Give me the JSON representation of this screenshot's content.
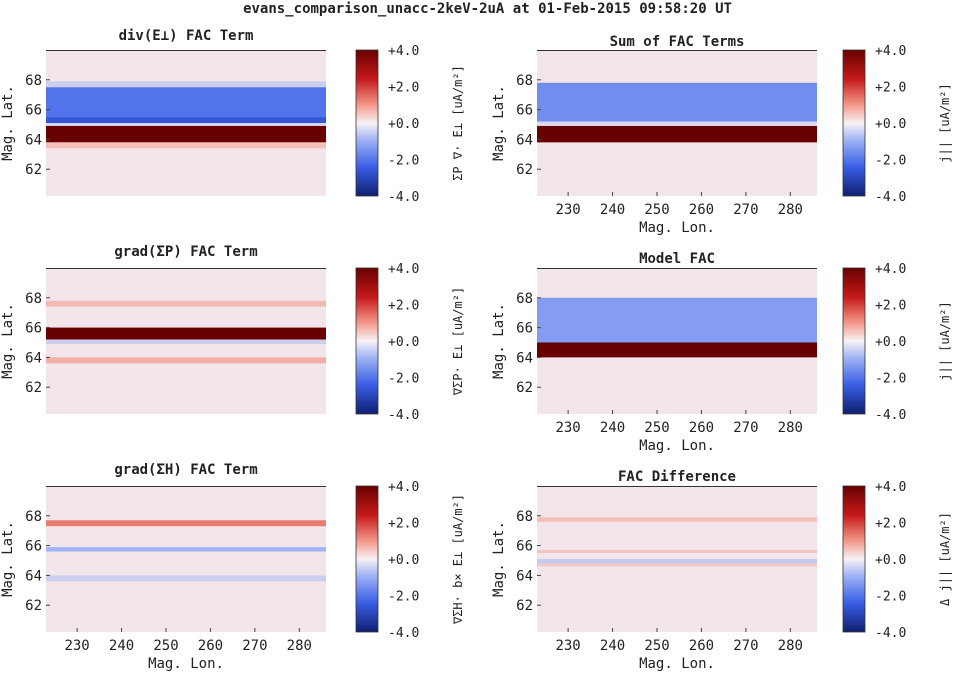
{
  "suptitle": "evans_comparison_unacc-2keV-2uA at 01-Feb-2015 09:58:20 UT",
  "colors": {
    "pos_strong": "#7a0000",
    "pos": "#d62f2f",
    "pos_light": "#f4b7b0",
    "neutral": "#f2e6ea",
    "neg_light": "#aeb9f2",
    "neg": "#3f63e8",
    "neg_strong": "#1b2f8f"
  },
  "colorbar": {
    "ticks": [
      "+4.0",
      "+2.0",
      "+0.0",
      "-2.0",
      "-4.0"
    ],
    "range": [
      -4.0,
      4.0
    ],
    "cmap": "blue-white-red"
  },
  "chart_data": [
    {
      "id": "div-e",
      "type": "heatmap",
      "title": "div(E⊥) FAC Term",
      "xlabel": "",
      "ylabel": "Mag. Lat.",
      "xticks": [],
      "yticks": [
        "62",
        "64",
        "66",
        "68"
      ],
      "xlim": [
        223,
        286
      ],
      "ylim": [
        60.2,
        70
      ],
      "colorbar_label": "ΣP ∇· E⊥ [uA/m²]",
      "bands": [
        {
          "lat": [
            67.5,
            67.9
          ],
          "value": -0.8
        },
        {
          "lat": [
            65.5,
            67.5
          ],
          "value": -2.8
        },
        {
          "lat": [
            65.1,
            65.5
          ],
          "value": -3.3
        },
        {
          "lat": [
            64.9,
            65.1
          ],
          "value": -0.6
        },
        {
          "lat": [
            63.8,
            64.9
          ],
          "value": 4.0
        },
        {
          "lat": [
            63.4,
            63.8
          ],
          "value": 0.9
        }
      ]
    },
    {
      "id": "sum",
      "type": "heatmap",
      "title": "Sum of FAC Terms",
      "xlabel": "Mag. Lon.",
      "ylabel": "Mag. Lat.",
      "xticks": [
        "230",
        "240",
        "250",
        "260",
        "270",
        "280"
      ],
      "yticks": [
        "62",
        "64",
        "66",
        "68"
      ],
      "xlim": [
        223,
        286
      ],
      "ylim": [
        60.2,
        70
      ],
      "colorbar_label": "j|| [uA/m²]",
      "bands": [
        {
          "lat": [
            65.2,
            67.8
          ],
          "value": -2.3
        },
        {
          "lat": [
            64.9,
            65.2
          ],
          "value": -0.5
        },
        {
          "lat": [
            63.8,
            64.9
          ],
          "value": 4.0
        }
      ]
    },
    {
      "id": "grad-sp",
      "type": "heatmap",
      "title": "grad(ΣP) FAC Term",
      "xlabel": "",
      "ylabel": "Mag. Lat.",
      "xticks": [],
      "yticks": [
        "62",
        "64",
        "66",
        "68"
      ],
      "xlim": [
        223,
        286
      ],
      "ylim": [
        60.2,
        70
      ],
      "colorbar_label": "∇ΣP· E⊥ [uA/m²]",
      "bands": [
        {
          "lat": [
            67.4,
            67.8
          ],
          "value": 1.0
        },
        {
          "lat": [
            65.2,
            66.0
          ],
          "value": 4.0
        },
        {
          "lat": [
            64.9,
            65.2
          ],
          "value": -0.8
        },
        {
          "lat": [
            63.6,
            64.0
          ],
          "value": 1.2
        }
      ]
    },
    {
      "id": "model",
      "type": "heatmap",
      "title": "Model FAC",
      "xlabel": "Mag. Lon.",
      "ylabel": "Mag. Lat.",
      "xticks": [
        "230",
        "240",
        "250",
        "260",
        "270",
        "280"
      ],
      "yticks": [
        "62",
        "64",
        "66",
        "68"
      ],
      "xlim": [
        223,
        286
      ],
      "ylim": [
        60.2,
        70
      ],
      "colorbar_label": "j|| [uA/m²]",
      "bands": [
        {
          "lat": [
            65.0,
            68.0
          ],
          "value": -2.0
        },
        {
          "lat": [
            64.0,
            65.0
          ],
          "value": 4.0
        }
      ]
    },
    {
      "id": "grad-sh",
      "type": "heatmap",
      "title": "grad(ΣH) FAC Term",
      "xlabel": "Mag. Lon.",
      "ylabel": "Mag. Lat.",
      "xticks": [
        "230",
        "240",
        "250",
        "260",
        "270",
        "280"
      ],
      "yticks": [
        "62",
        "64",
        "66",
        "68"
      ],
      "xlim": [
        223,
        286
      ],
      "ylim": [
        60.2,
        70
      ],
      "colorbar_label": "∇ΣH· b× E⊥ [uA/m²]",
      "bands": [
        {
          "lat": [
            67.3,
            67.7
          ],
          "value": 2.0
        },
        {
          "lat": [
            65.6,
            65.9
          ],
          "value": -1.5
        },
        {
          "lat": [
            63.6,
            64.0
          ],
          "value": -0.8
        }
      ]
    },
    {
      "id": "diff",
      "type": "heatmap",
      "title": "FAC Difference",
      "xlabel": "Mag. Lon.",
      "ylabel": "Mag. Lat.",
      "xticks": [
        "230",
        "240",
        "250",
        "260",
        "270",
        "280"
      ],
      "yticks": [
        "62",
        "64",
        "66",
        "68"
      ],
      "xlim": [
        223,
        286
      ],
      "ylim": [
        60.2,
        70
      ],
      "colorbar_label": "Δ j|| [uA/m²]",
      "bands": [
        {
          "lat": [
            67.6,
            67.9
          ],
          "value": 0.9
        },
        {
          "lat": [
            65.5,
            65.7
          ],
          "value": 0.8
        },
        {
          "lat": [
            64.8,
            65.1
          ],
          "value": -0.9
        },
        {
          "lat": [
            64.6,
            64.8
          ],
          "value": 0.7
        }
      ]
    }
  ]
}
